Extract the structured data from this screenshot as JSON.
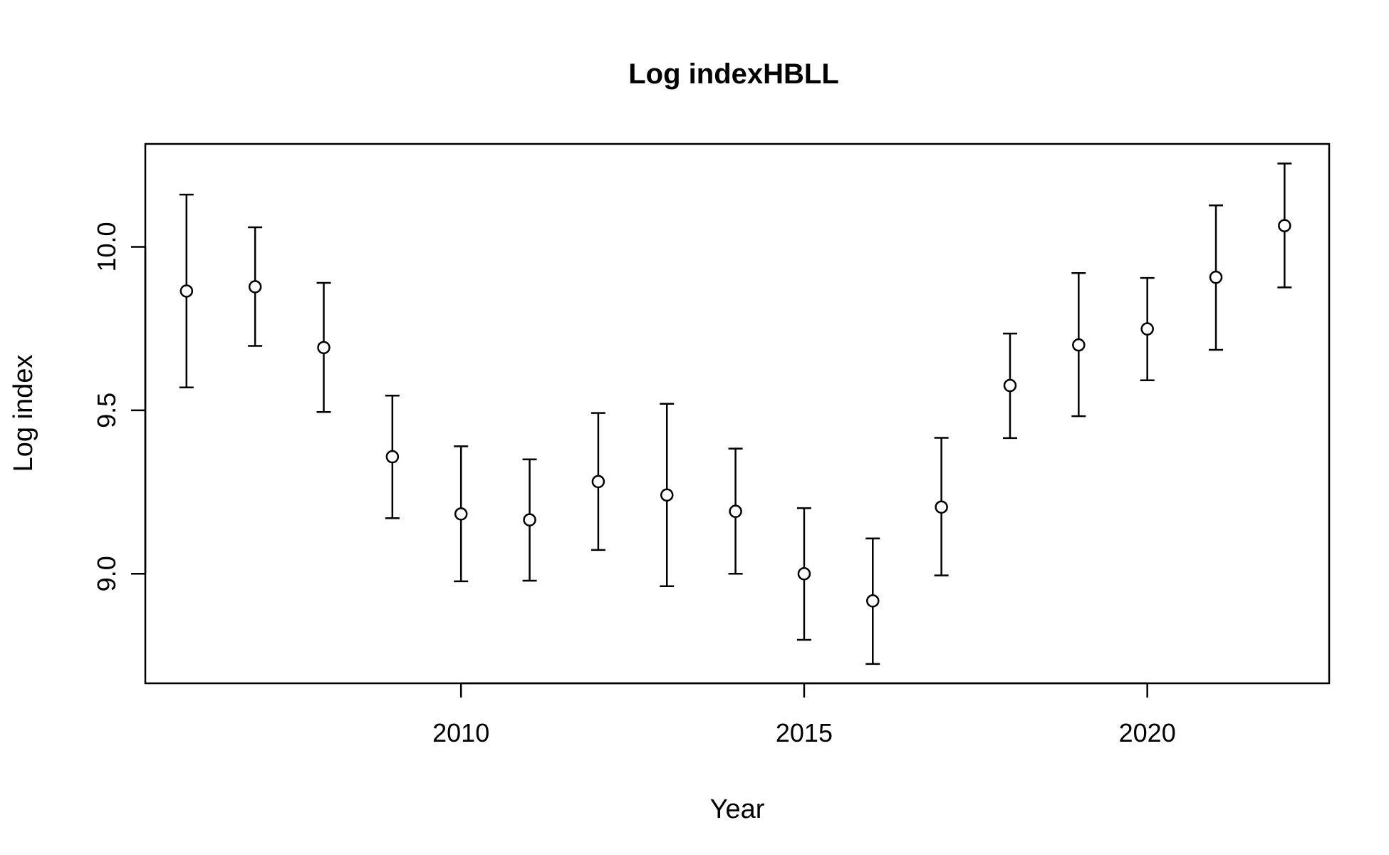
{
  "chart_data": {
    "type": "scatter",
    "title": "Log indexHBLL",
    "xlabel": "Year",
    "ylabel": "Log index",
    "x_ticks": [
      "2010",
      "2015",
      "2020"
    ],
    "y_ticks": [
      "9.0",
      "9.5",
      "10.0"
    ],
    "xlim": [
      2005.4,
      2022.65
    ],
    "ylim": [
      8.665,
      10.315
    ],
    "grid": false,
    "legend": "none",
    "error_bars": true,
    "series": [
      {
        "marker": "open-circle",
        "color": "#000000",
        "points": [
          {
            "x": 2006,
            "y": 9.865,
            "lower": 9.57,
            "upper": 10.16
          },
          {
            "x": 2007,
            "y": 9.878,
            "lower": 9.697,
            "upper": 10.06
          },
          {
            "x": 2008,
            "y": 9.692,
            "lower": 9.495,
            "upper": 9.89
          },
          {
            "x": 2009,
            "y": 9.358,
            "lower": 9.17,
            "upper": 9.545
          },
          {
            "x": 2010,
            "y": 9.183,
            "lower": 8.977,
            "upper": 9.39
          },
          {
            "x": 2011,
            "y": 9.165,
            "lower": 8.979,
            "upper": 9.35
          },
          {
            "x": 2012,
            "y": 9.282,
            "lower": 9.073,
            "upper": 9.492
          },
          {
            "x": 2013,
            "y": 9.241,
            "lower": 8.962,
            "upper": 9.52
          },
          {
            "x": 2014,
            "y": 9.191,
            "lower": 9.0,
            "upper": 9.383
          },
          {
            "x": 2015,
            "y": 9.0,
            "lower": 8.798,
            "upper": 9.201
          },
          {
            "x": 2016,
            "y": 8.917,
            "lower": 8.724,
            "upper": 9.108
          },
          {
            "x": 2017,
            "y": 9.204,
            "lower": 8.995,
            "upper": 9.416
          },
          {
            "x": 2018,
            "y": 9.576,
            "lower": 9.415,
            "upper": 9.735
          },
          {
            "x": 2019,
            "y": 9.7,
            "lower": 9.482,
            "upper": 9.92
          },
          {
            "x": 2020,
            "y": 9.749,
            "lower": 9.592,
            "upper": 9.905
          },
          {
            "x": 2021,
            "y": 9.907,
            "lower": 9.685,
            "upper": 10.127
          },
          {
            "x": 2022,
            "y": 10.065,
            "lower": 9.876,
            "upper": 10.255
          }
        ]
      }
    ]
  }
}
